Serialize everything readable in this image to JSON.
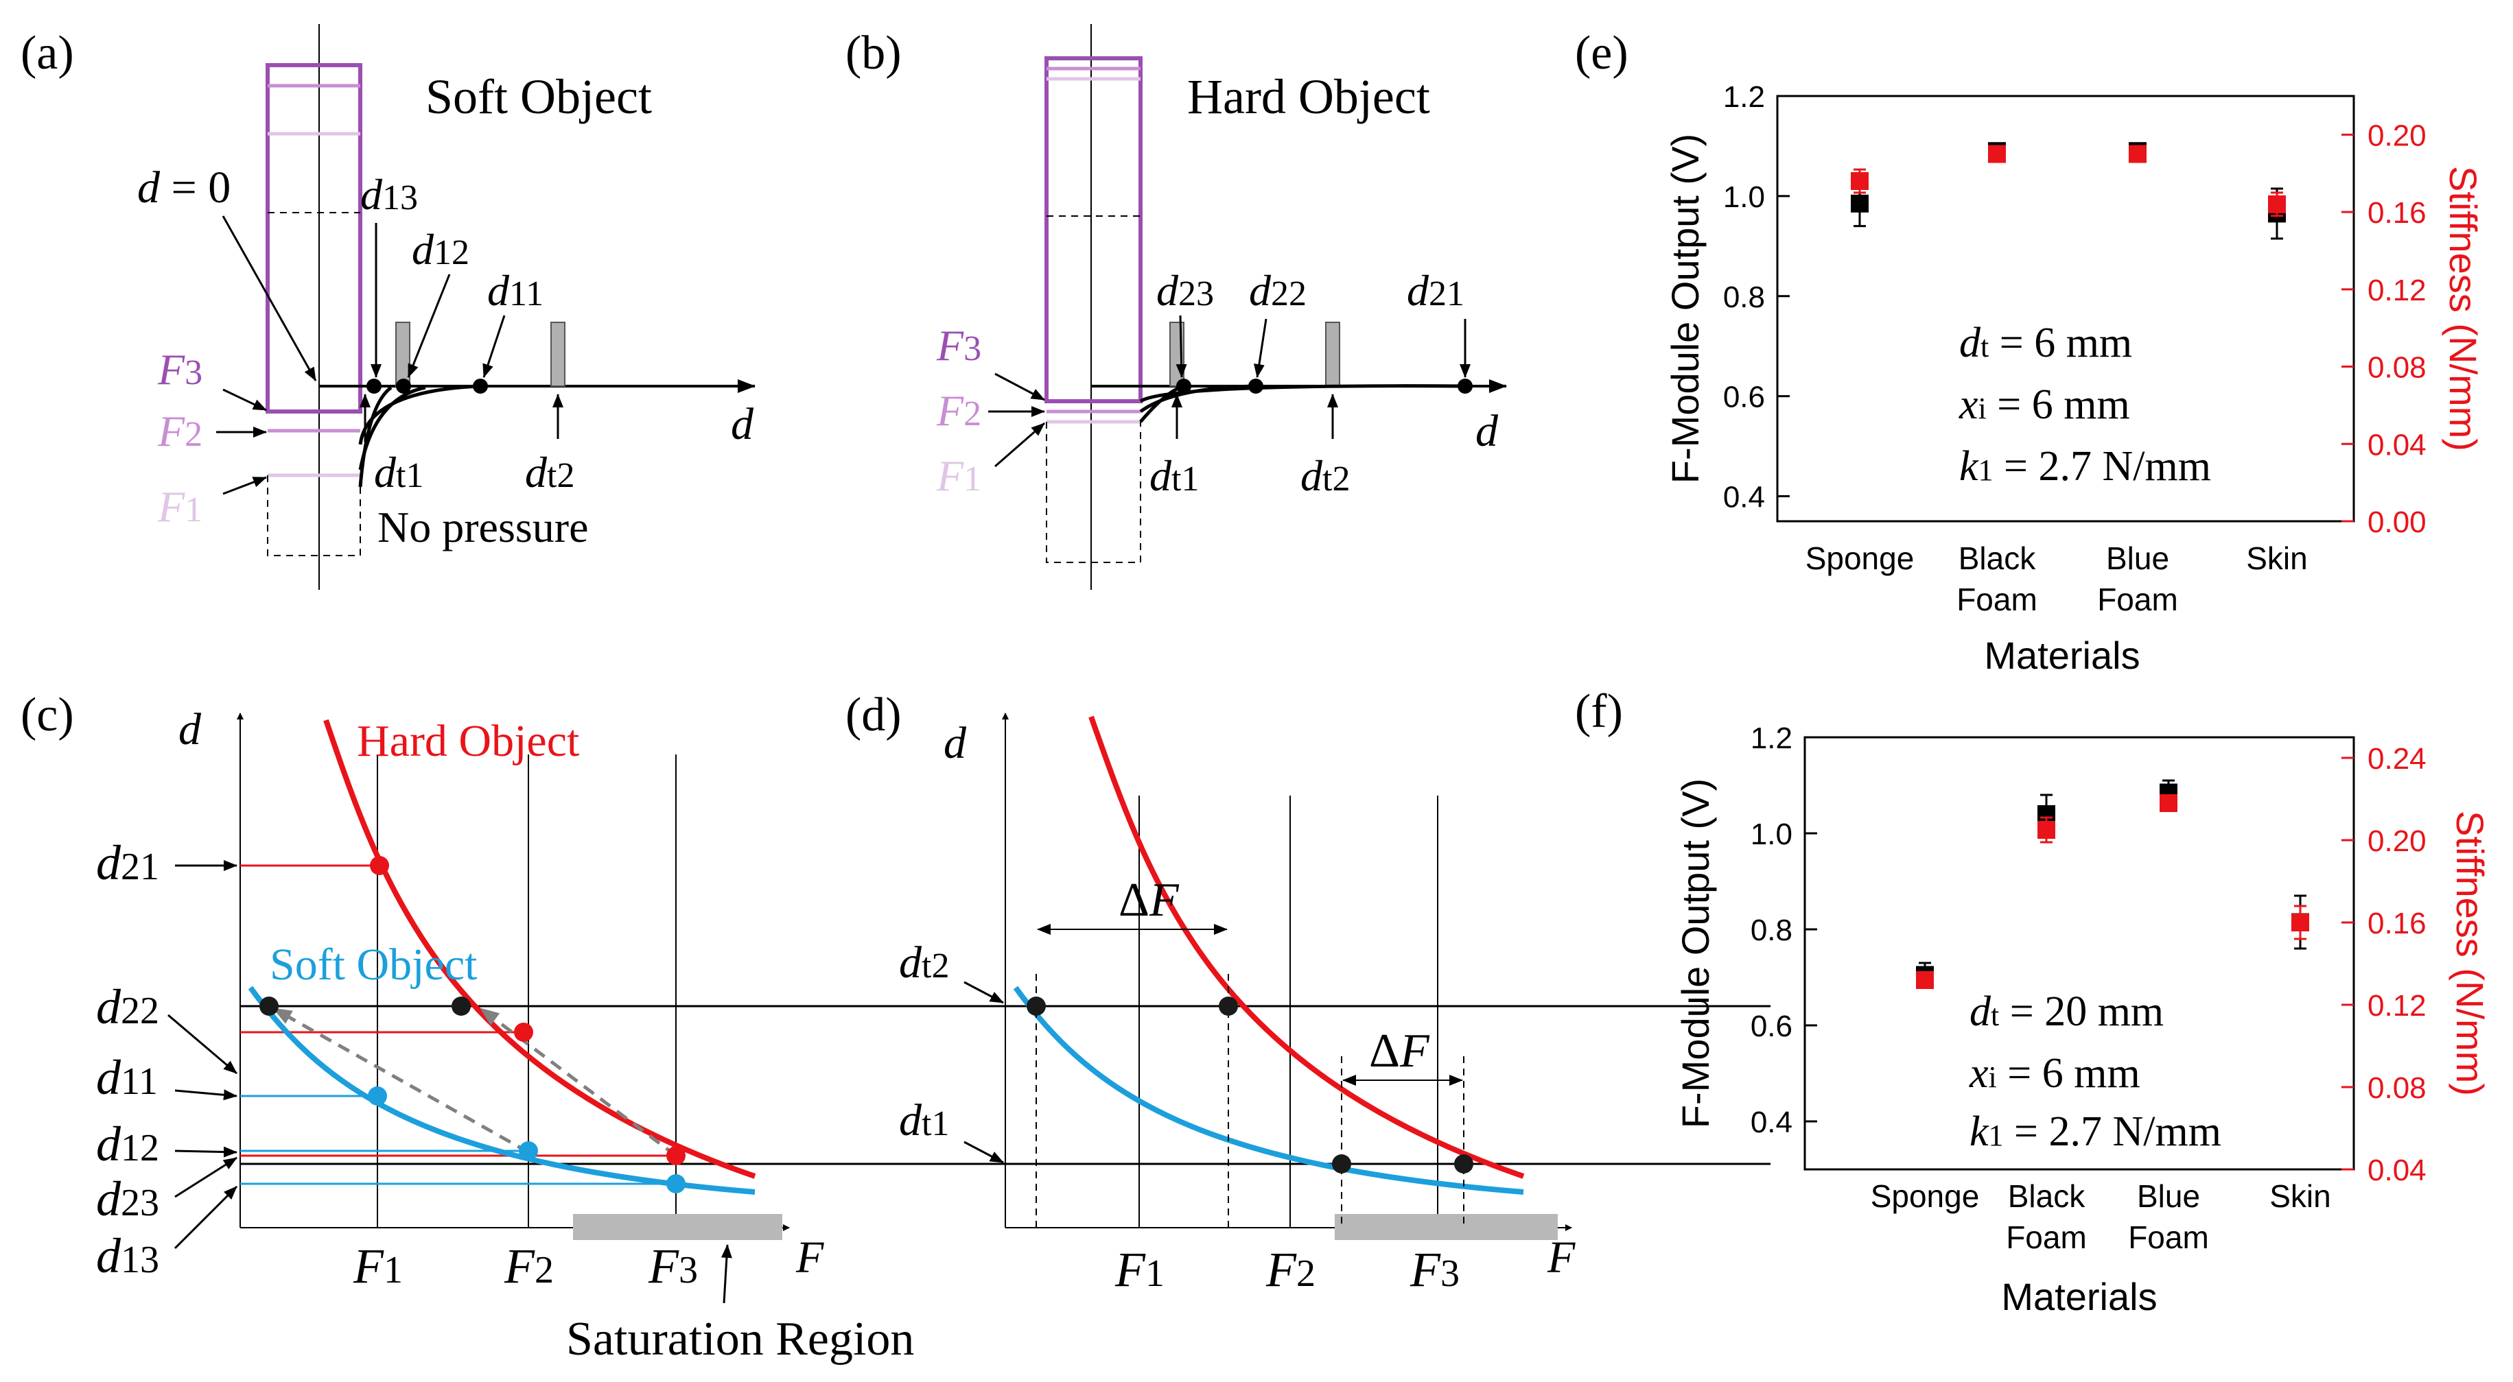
{
  "panels": {
    "a": {
      "label": "(a)",
      "title": "Soft Object",
      "d_eq": "d = 0",
      "d13": "13",
      "d12": "12",
      "d11": "11",
      "F3": "3",
      "F2": "2",
      "F1": "1",
      "axis_d": "d",
      "dt1": "t1",
      "dt2": "t2",
      "no_pressure": "No pressure"
    },
    "b": {
      "label": "(b)",
      "title": "Hard Object",
      "d23": "23",
      "d22": "22",
      "d21": "21",
      "F3": "3",
      "F2": "2",
      "F1": "1",
      "axis_d": "d",
      "dt1": "t1",
      "dt2": "t2"
    },
    "c": {
      "label": "(c)",
      "axis_d": "d",
      "axis_F": "F",
      "hard_label": "Hard Object",
      "soft_label": "Soft Object",
      "y_labels": [
        "21",
        "22",
        "11",
        "12",
        "23",
        "13"
      ],
      "F_ticks": [
        "1",
        "2",
        "3"
      ],
      "saturation": "Saturation Region"
    },
    "d": {
      "label": "(d)",
      "axis_d": "d",
      "axis_F": "F",
      "dt2": "t2",
      "dt1": "t1",
      "delta_F": "ΔF",
      "F_ticks": [
        "1",
        "2",
        "3"
      ]
    }
  },
  "chart_data": [
    {
      "id": "e",
      "label": "(e)",
      "type": "scatter",
      "categories": [
        "Sponge",
        "Black\nFoam",
        "Blue\nFoam",
        "Skin"
      ],
      "category_lines": [
        [
          "Sponge"
        ],
        [
          "Black",
          "Foam"
        ],
        [
          "Blue",
          "Foam"
        ],
        [
          "Skin"
        ]
      ],
      "xlabel": "Materials",
      "ylabel_left": "F-Module Output (V)",
      "ylabel_right": "Stiffness (N/mm)",
      "ylim_left": [
        0.35,
        1.2
      ],
      "ylim_right": [
        0.0,
        0.22
      ],
      "yticks_left": [
        "0.4",
        "0.6",
        "0.8",
        "1.0",
        "1.2"
      ],
      "yticks_right": [
        "0.00",
        "0.04",
        "0.08",
        "0.12",
        "0.16",
        "0.20"
      ],
      "series": [
        {
          "name": "F-Module Output",
          "axis": "left",
          "color": "#000000",
          "values": [
            0.985,
            1.09,
            1.09,
            0.965
          ],
          "errors": [
            0.045,
            0.01,
            0.01,
            0.05
          ]
        },
        {
          "name": "Stiffness",
          "axis": "right",
          "color": "#e8141a",
          "values": [
            0.176,
            0.19,
            0.19,
            0.164
          ],
          "errors": [
            0.006,
            0.002,
            0.002,
            0.006
          ]
        }
      ],
      "params": [
        {
          "sym": "d",
          "sub": "t",
          "val": " = 6 mm"
        },
        {
          "sym": "x",
          "sub": "i",
          "val": " = 6 mm"
        },
        {
          "sym": "k",
          "sub": "1",
          "val": " = 2.7 N/mm"
        }
      ]
    },
    {
      "id": "f",
      "label": "(f)",
      "type": "scatter",
      "categories": [
        "Sponge",
        "Black\nFoam",
        "Blue\nFoam",
        "Skin"
      ],
      "category_lines": [
        [
          "Sponge"
        ],
        [
          "Black",
          "Foam"
        ],
        [
          "Blue",
          "Foam"
        ],
        [
          "Skin"
        ]
      ],
      "xlabel": "Materials",
      "ylabel_left": "F-Module Output (V)",
      "ylabel_right": "Stiffness (N/mm)",
      "ylim_left": [
        0.3,
        1.2
      ],
      "ylim_right": [
        0.04,
        0.25
      ],
      "yticks_left": [
        "0.4",
        "0.6",
        "0.8",
        "1.0",
        "1.2"
      ],
      "yticks_right": [
        "0.04",
        "0.08",
        "0.12",
        "0.16",
        "0.20",
        "0.24"
      ],
      "series": [
        {
          "name": "F-Module Output",
          "axis": "left",
          "color": "#000000",
          "values": [
            0.705,
            1.04,
            1.085,
            0.815
          ],
          "errors": [
            0.025,
            0.04,
            0.025,
            0.055
          ]
        },
        {
          "name": "Stiffness",
          "axis": "right",
          "color": "#e8141a",
          "values": [
            0.132,
            0.205,
            0.218,
            0.16
          ],
          "errors": [
            0.003,
            0.006,
            0.003,
            0.008
          ]
        }
      ],
      "params": [
        {
          "sym": "d",
          "sub": "t",
          "val": " = 20 mm"
        },
        {
          "sym": "x",
          "sub": "i",
          "val": " = 6 mm"
        },
        {
          "sym": "k",
          "sub": "1",
          "val": " = 2.7 N/mm"
        }
      ]
    }
  ]
}
